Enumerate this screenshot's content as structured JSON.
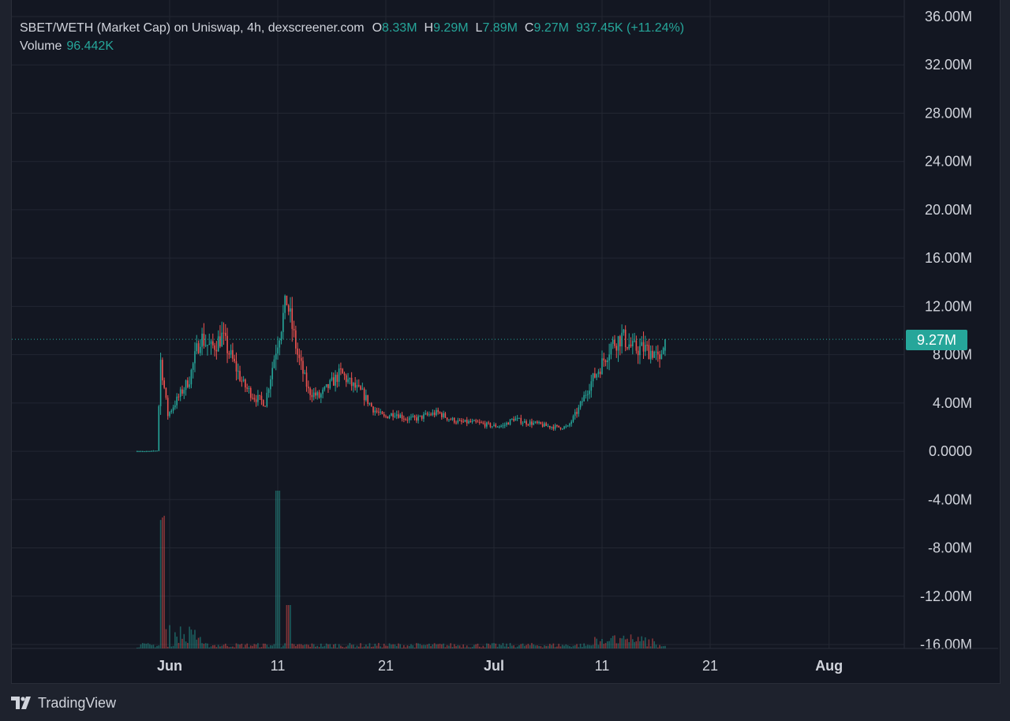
{
  "legend": {
    "symbol_text": "SBET/WETH (Market Cap) on Uniswap, 4h, dexscreener.com",
    "open_label": "O",
    "open_value": "8.33M",
    "high_label": "H",
    "high_value": "9.29M",
    "low_label": "L",
    "low_value": "7.89M",
    "close_label": "C",
    "close_value": "9.27M",
    "change_text": "937.45K (+11.24%)",
    "volume_label": "Volume",
    "volume_value": "96.442K"
  },
  "last_price_tag": "9.27M",
  "brand": "TradingView",
  "colors": {
    "background": "#131722",
    "outer": "#1e222d",
    "grid": "#232732",
    "text": "#d1d4dc",
    "up": "#26a69a",
    "down": "#ef5350"
  },
  "chart_data": {
    "type": "candlestick",
    "title": "",
    "interval": "4h",
    "y_axis": {
      "min": -16000000,
      "max": 36000000,
      "ticks": [
        36000000,
        32000000,
        28000000,
        24000000,
        20000000,
        16000000,
        12000000,
        8000000,
        4000000,
        0,
        -4000000,
        -8000000,
        -12000000,
        -16000000
      ],
      "tick_labels": [
        "36.00M",
        "32.00M",
        "28.00M",
        "24.00M",
        "20.00M",
        "16.00M",
        "12.00M",
        "8.00M",
        "4.00M",
        "0.0000",
        "-4.00M",
        "-8.00M",
        "-12.00M",
        "-16.00M"
      ]
    },
    "x_axis": {
      "tick_labels": [
        "Jun",
        "11",
        "21",
        "Jul",
        "11",
        "21",
        "Aug"
      ],
      "tick_dates": [
        "2025-06-01",
        "2025-06-11",
        "2025-06-21",
        "2025-07-01",
        "2025-07-11",
        "2025-07-21",
        "2025-08-01"
      ],
      "range": [
        "2025-05-20",
        "2025-08-08"
      ]
    },
    "grid": true,
    "last_close": 9270000,
    "price_anchors_millions": [
      [
        "2025-05-29",
        0.0
      ],
      [
        "2025-05-30",
        0.0
      ],
      [
        "2025-05-31",
        0.05
      ],
      [
        "2025-05-31T08",
        7.5
      ],
      [
        "2025-06-01",
        3.0
      ],
      [
        "2025-06-02",
        4.5
      ],
      [
        "2025-06-03",
        6.0
      ],
      [
        "2025-06-04",
        9.5
      ],
      [
        "2025-06-05",
        8.5
      ],
      [
        "2025-06-06",
        9.5
      ],
      [
        "2025-06-07",
        7.5
      ],
      [
        "2025-06-08",
        5.5
      ],
      [
        "2025-06-09",
        4.5
      ],
      [
        "2025-06-10",
        4.0
      ],
      [
        "2025-06-11",
        8.5
      ],
      [
        "2025-06-12",
        12.5
      ],
      [
        "2025-06-13",
        8.0
      ],
      [
        "2025-06-14",
        5.0
      ],
      [
        "2025-06-15",
        4.5
      ],
      [
        "2025-06-16",
        5.5
      ],
      [
        "2025-06-17",
        6.5
      ],
      [
        "2025-06-18",
        5.5
      ],
      [
        "2025-06-19",
        4.8
      ],
      [
        "2025-06-20",
        3.5
      ],
      [
        "2025-06-21",
        2.8
      ],
      [
        "2025-06-22",
        3.2
      ],
      [
        "2025-06-23",
        2.7
      ],
      [
        "2025-06-24",
        2.7
      ],
      [
        "2025-06-25",
        3.0
      ],
      [
        "2025-06-26",
        3.2
      ],
      [
        "2025-06-27",
        2.7
      ],
      [
        "2025-06-28",
        2.4
      ],
      [
        "2025-06-29",
        2.4
      ],
      [
        "2025-06-30",
        2.3
      ],
      [
        "2025-07-01",
        2.1
      ],
      [
        "2025-07-02",
        2.1
      ],
      [
        "2025-07-03",
        2.7
      ],
      [
        "2025-07-04",
        2.4
      ],
      [
        "2025-07-05",
        2.3
      ],
      [
        "2025-07-06",
        2.1
      ],
      [
        "2025-07-07",
        2.0
      ],
      [
        "2025-07-08",
        2.0
      ],
      [
        "2025-07-09",
        3.5
      ],
      [
        "2025-07-10",
        5.5
      ],
      [
        "2025-07-11",
        7.0
      ],
      [
        "2025-07-12",
        8.8
      ],
      [
        "2025-07-13",
        9.5
      ],
      [
        "2025-07-14",
        8.5
      ],
      [
        "2025-07-15",
        8.5
      ],
      [
        "2025-07-16",
        8.2
      ],
      [
        "2025-07-16T12",
        7.2
      ],
      [
        "2025-07-16T20",
        9.27
      ]
    ],
    "volume_note": "Volume histogram shown at bottom of chart; peaks near 2025-05-31 and 2025-06-11"
  }
}
